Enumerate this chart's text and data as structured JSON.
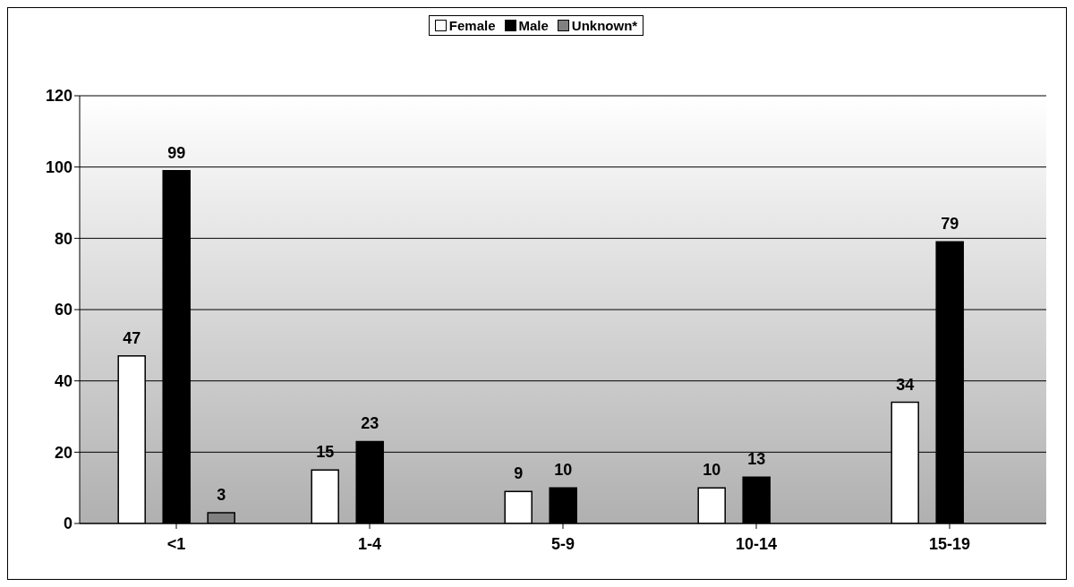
{
  "chart_data": {
    "type": "bar",
    "categories": [
      "<1",
      "1-4",
      "5-9",
      "10-14",
      "15-19"
    ],
    "series": [
      {
        "name": "Female",
        "color": "#ffffff",
        "values": [
          47,
          15,
          9,
          10,
          34
        ]
      },
      {
        "name": "Male",
        "color": "#000000",
        "values": [
          99,
          23,
          10,
          13,
          79
        ]
      },
      {
        "name": "Unknown*",
        "color": "#808080",
        "values": [
          3,
          null,
          null,
          null,
          null
        ]
      }
    ],
    "ylim": [
      0,
      120
    ],
    "yticks": [
      0,
      20,
      40,
      60,
      80,
      100,
      120
    ],
    "grid": "y",
    "legend": "top",
    "data_labels": true
  }
}
